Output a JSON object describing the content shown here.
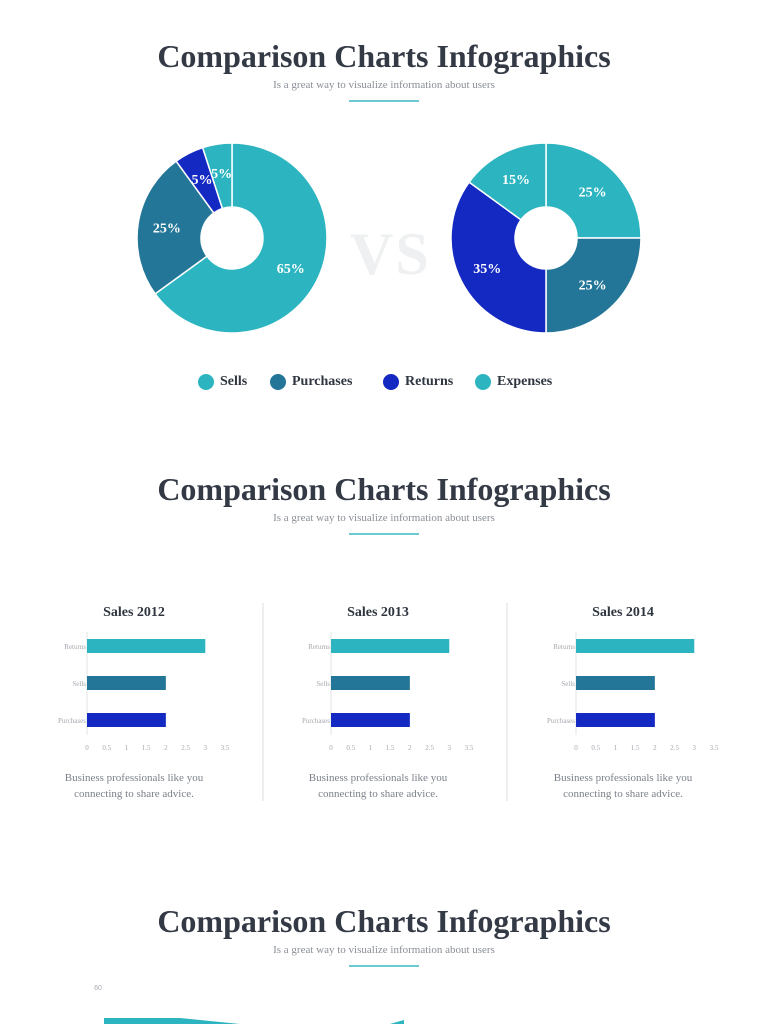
{
  "sections": [
    {
      "title": "Comparison Charts Infographics",
      "subtitle": "Is a great way to visualize information about users"
    },
    {
      "title": "Comparison Charts Infographics",
      "subtitle": "Is a great way to visualize information about users"
    },
    {
      "title": "Comparison Charts Infographics",
      "subtitle": "Is a great way to visualize information about users"
    }
  ],
  "vs_label": "VS",
  "legend": [
    {
      "label": "Sells",
      "color": "#2cb5c0"
    },
    {
      "label": "Purchases",
      "color": "#247698"
    },
    {
      "label": "Returns",
      "color": "#1429c2"
    },
    {
      "label": "Expenses",
      "color": "#2cb5c0"
    }
  ],
  "chart_data": [
    {
      "type": "pie",
      "labels": [
        "Sells",
        "Purchases",
        "Returns",
        "Expenses"
      ],
      "values": [
        65,
        25,
        5,
        5
      ],
      "value_labels": [
        "65%",
        "25%",
        "5%",
        "5%"
      ],
      "colors": [
        "#2cb5c0",
        "#247698",
        "#1429c2",
        "#2cb5c0"
      ]
    },
    {
      "type": "pie",
      "labels": [
        "Sells",
        "Purchases",
        "Returns",
        "Expenses"
      ],
      "values": [
        25,
        25,
        35,
        15
      ],
      "value_labels": [
        "25%",
        "25%",
        "35%",
        "15%"
      ],
      "colors": [
        "#2cb5c0",
        "#247698",
        "#1429c2",
        "#2cb5c0"
      ]
    },
    {
      "type": "bar",
      "orientation": "horizontal",
      "title": "Sales 2012",
      "categories": [
        "Returns",
        "Sells",
        "Purchases"
      ],
      "values": [
        3,
        2,
        2
      ],
      "colors": [
        "#2cb5c0",
        "#247698",
        "#1429c2"
      ],
      "xlim": [
        0,
        3.5
      ],
      "xticks": [
        "0",
        "0.5",
        "1",
        "1.5",
        "2",
        "2.5",
        "3",
        "3.5"
      ],
      "description": [
        "Business professionals like you",
        "connecting to share advice."
      ]
    },
    {
      "type": "bar",
      "orientation": "horizontal",
      "title": "Sales 2013",
      "categories": [
        "Returns",
        "Sells",
        "Purchases"
      ],
      "values": [
        3,
        2,
        2
      ],
      "colors": [
        "#2cb5c0",
        "#247698",
        "#1429c2"
      ],
      "xlim": [
        0,
        3.5
      ],
      "xticks": [
        "0",
        "0.5",
        "1",
        "1.5",
        "2",
        "2.5",
        "3",
        "3.5"
      ],
      "description": [
        "Business professionals like you",
        "connecting to share advice."
      ]
    },
    {
      "type": "bar",
      "orientation": "horizontal",
      "title": "Sales 2014",
      "categories": [
        "Returns",
        "Sells",
        "Purchases"
      ],
      "values": [
        3,
        2,
        2
      ],
      "colors": [
        "#2cb5c0",
        "#247698",
        "#1429c2"
      ],
      "xlim": [
        0,
        3.5
      ],
      "xticks": [
        "0",
        "0.5",
        "1",
        "1.5",
        "2",
        "2.5",
        "3",
        "3.5"
      ],
      "description": [
        "Business professionals like you",
        "connecting to share advice."
      ]
    },
    {
      "type": "area",
      "yticks": [
        "60"
      ],
      "color": "#2cb5c0"
    }
  ]
}
